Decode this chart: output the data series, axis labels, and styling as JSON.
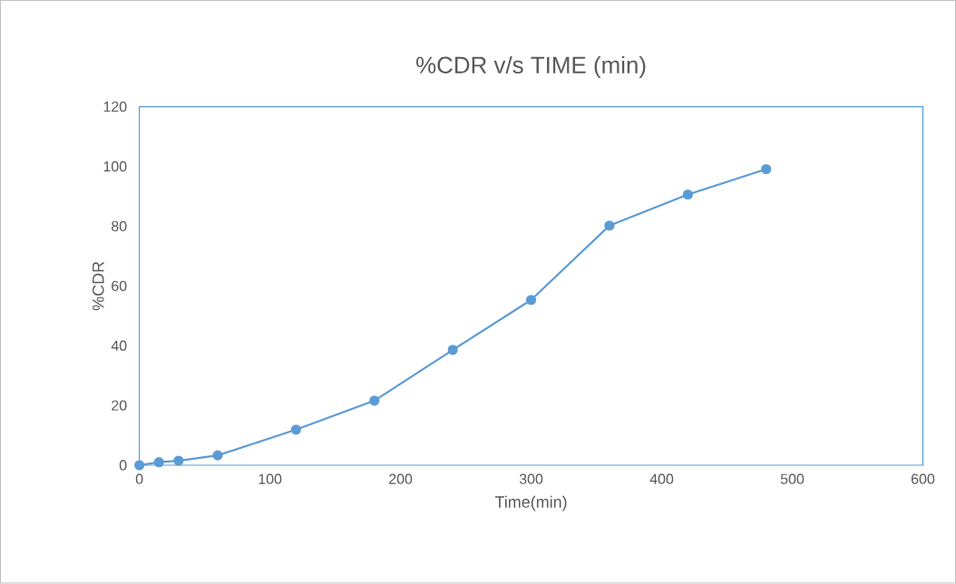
{
  "chart_data": {
    "type": "line",
    "title": "%CDR v/s TIME (min)",
    "xlabel": "Time(min)",
    "ylabel": "%CDR",
    "x": [
      0,
      15,
      30,
      60,
      120,
      180,
      240,
      300,
      360,
      420,
      480
    ],
    "series": [
      {
        "color": "#5b9bd5",
        "values": [
          0,
          1,
          1.5,
          3.3,
          11.9,
          21.6,
          38.6,
          55.3,
          80.2,
          90.6,
          99.1
        ]
      }
    ],
    "xlim": [
      0,
      600
    ],
    "xticks": [
      0,
      100,
      200,
      300,
      400,
      500,
      600
    ],
    "ylim": [
      0,
      120
    ],
    "yticks": [
      0,
      20,
      40,
      60,
      80,
      100,
      120
    ],
    "grid": false,
    "marker": "circle",
    "line_style": "solid"
  }
}
